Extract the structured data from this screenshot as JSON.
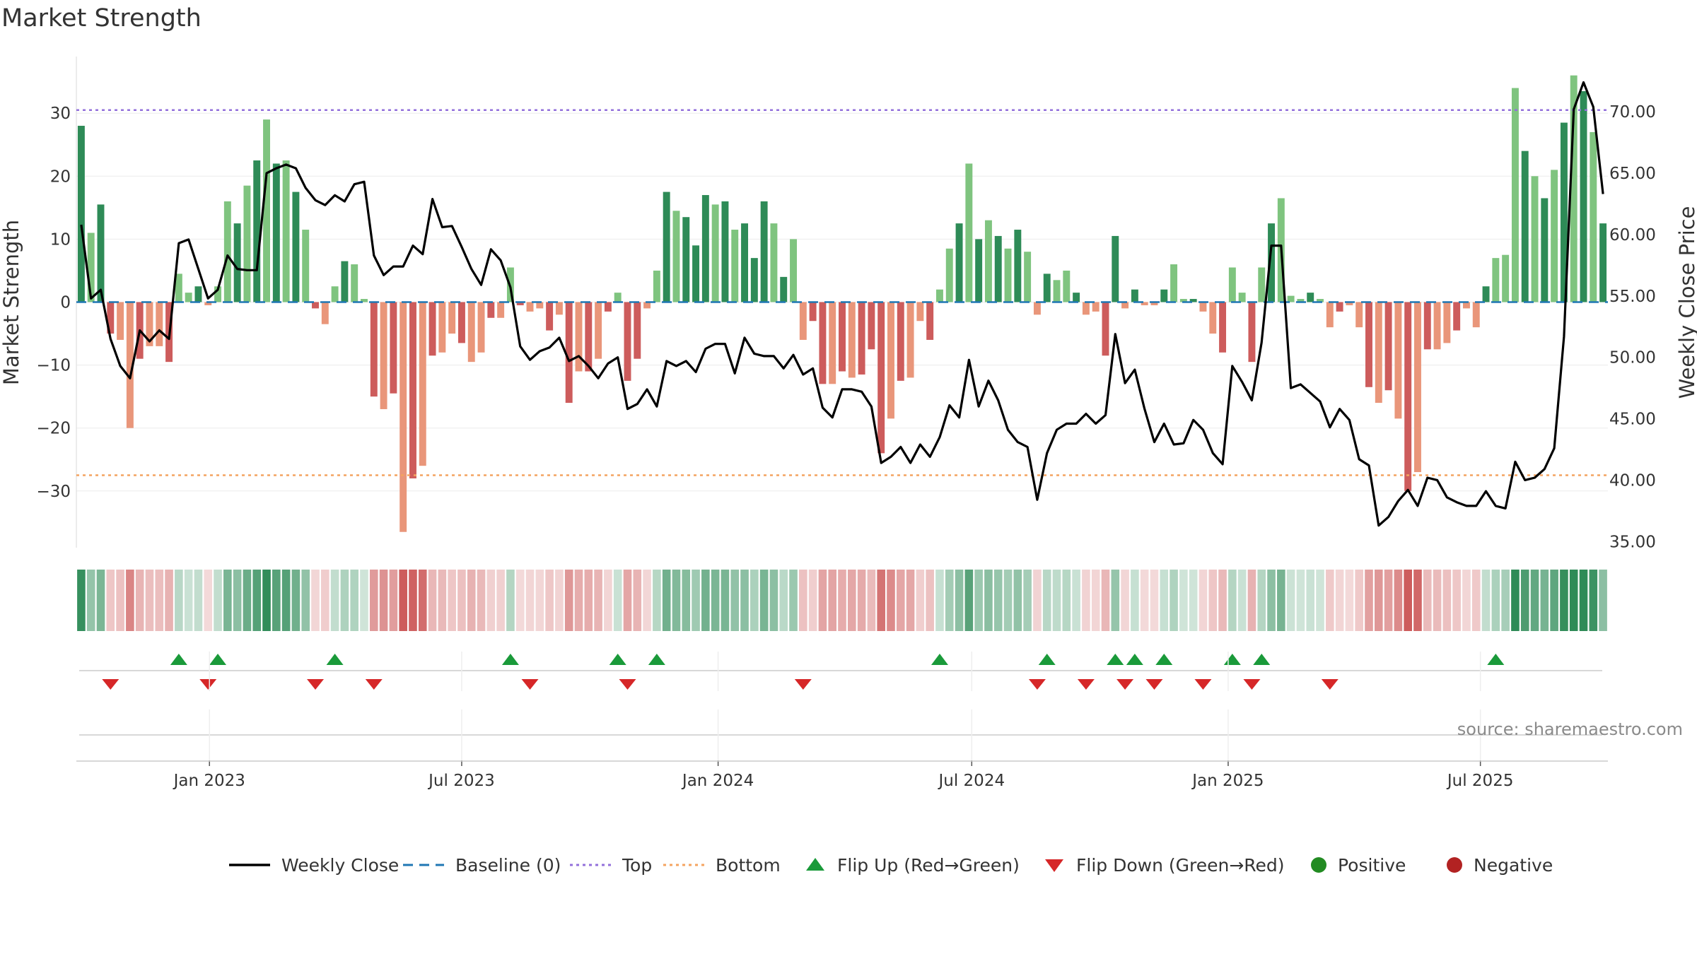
{
  "title": "Market Strength",
  "source": "source: sharemaestro.com",
  "colors": {
    "strong_green": "#2e8b57",
    "light_green": "#7fc47f",
    "strong_red": "#cd5c5c",
    "light_red": "#e9967a",
    "line": "#000000",
    "top": "#9370db",
    "bottom": "#f4a460",
    "baseline": "#1f77b4",
    "flip_up": "#1a9a3a",
    "flip_down": "#d62728",
    "positive": "#228b22",
    "negative": "#b22222"
  },
  "chart_data": {
    "type": "bar",
    "x_start": "2022-10-01",
    "x_step_days": 7,
    "left_axis": {
      "label": "Market Strength",
      "ticks": [
        30,
        20,
        10,
        0,
        -10,
        -20,
        -30
      ],
      "tick_labels": [
        "30",
        "20",
        "10",
        "0",
        "−10",
        "−20",
        "−30"
      ],
      "ylim": [
        -39,
        39
      ]
    },
    "right_axis": {
      "label": "Weekly Close Price",
      "ticks": [
        70,
        65,
        60,
        55,
        50,
        45,
        40,
        35
      ],
      "tick_labels": [
        "70.00",
        "65.00",
        "60.00",
        "55.00",
        "50.00",
        "45.00",
        "40.00",
        "35.00"
      ],
      "ylim": [
        34.5,
        74.5
      ]
    },
    "x_ticks": [
      {
        "label": "Jan 2023",
        "date": "2023-01-01"
      },
      {
        "label": "Jul 2023",
        "date": "2023-07-01"
      },
      {
        "label": "Jan 2024",
        "date": "2024-01-01"
      },
      {
        "label": "Jul 2024",
        "date": "2024-07-01"
      },
      {
        "label": "Jan 2025",
        "date": "2025-01-01"
      },
      {
        "label": "Jul 2025",
        "date": "2025-07-01"
      }
    ],
    "top_level": 30.5,
    "bottom_level": -27.5,
    "strength": [
      28,
      11,
      15.5,
      -5,
      -6,
      -20,
      -9,
      -7,
      -7,
      -9.5,
      4.5,
      1.5,
      2.5,
      -0.5,
      2.5,
      16,
      12.5,
      18.5,
      22.5,
      29,
      22,
      22.5,
      17.5,
      11.5,
      -1,
      -3.5,
      2.5,
      6.5,
      6,
      0.5,
      -15,
      -17,
      -14.5,
      -36.5,
      -28,
      -26,
      -8.5,
      -8,
      -5,
      -6.5,
      -9.5,
      -8,
      -2.5,
      -2.5,
      5.5,
      -0.5,
      -1.5,
      -1,
      -4.5,
      -2,
      -16,
      -11,
      -11,
      -9,
      -1.5,
      1.5,
      -12.5,
      -9,
      -1,
      5,
      17.5,
      14.5,
      13.5,
      9,
      17,
      15.5,
      16,
      11.5,
      12.5,
      7,
      16,
      12.5,
      4,
      10,
      -6,
      -3,
      -13,
      -13,
      -11,
      -12,
      -11.5,
      -7.5,
      -24,
      -18.5,
      -12.5,
      -12,
      -3,
      -6,
      2,
      8.5,
      12.5,
      22,
      10,
      13,
      10.5,
      8.5,
      11.5,
      8,
      -2,
      4.5,
      3.5,
      5,
      1.5,
      -2,
      -1.5,
      -8.5,
      10.5,
      -1,
      2,
      -0.5,
      -0.5,
      2,
      6,
      0.5,
      0.5,
      -1.5,
      -5,
      -8,
      5.5,
      1.5,
      -9.5,
      5.5,
      12.5,
      16.5,
      1,
      0.5,
      1.5,
      0.5,
      -4,
      -1.5,
      -0.5,
      -4,
      -13.5,
      -16,
      -14,
      -18.5,
      -30,
      -27,
      -7.5,
      -7.5,
      -6.5,
      -4.5,
      -1,
      -4,
      2.5,
      7,
      7.5,
      34,
      24,
      20,
      16.5,
      21,
      28.5,
      36,
      33.5,
      27,
      12.5
    ],
    "weekly_close": [
      60.8,
      54.8,
      55.5,
      51.5,
      49.3,
      48.3,
      52.2,
      51.3,
      52.2,
      51.5,
      59.3,
      59.6,
      57.2,
      54.8,
      55.5,
      58.3,
      57.2,
      57.1,
      57.1,
      65,
      65.4,
      65.7,
      65.4,
      63.8,
      62.8,
      62.4,
      63.2,
      62.7,
      64.1,
      64.3,
      58.3,
      56.7,
      57.4,
      57.4,
      59.1,
      58.4,
      62.9,
      60.6,
      60.7,
      59,
      57.2,
      55.9,
      58.8,
      57.9,
      55.7,
      50.9,
      49.8,
      50.5,
      50.8,
      51.6,
      49.7,
      50.1,
      49.3,
      48.3,
      49.5,
      50,
      45.8,
      46.2,
      47.4,
      46,
      49.7,
      49.3,
      49.7,
      48.8,
      50.7,
      51.1,
      51.1,
      48.7,
      51.6,
      50.3,
      50.1,
      50.1,
      49.1,
      50.2,
      48.6,
      49.1,
      45.9,
      45.1,
      47.4,
      47.4,
      47.2,
      46,
      41.4,
      41.9,
      42.7,
      41.4,
      42.9,
      41.9,
      43.5,
      46.1,
      45.1,
      49.8,
      46,
      48.1,
      46.5,
      44.1,
      43.1,
      42.7,
      38.4,
      42.2,
      44.1,
      44.6,
      44.6,
      45.4,
      44.6,
      45.3,
      51.9,
      47.9,
      49,
      45.8,
      43.1,
      44.6,
      42.9,
      43,
      44.9,
      44.1,
      42.2,
      41.3,
      49.3,
      48,
      46.5,
      51.2,
      59.1,
      59.1,
      47.5,
      47.8,
      47.1,
      46.4,
      44.3,
      45.8,
      44.9,
      41.7,
      41.2,
      36.3,
      37,
      38.3,
      39.2,
      37.9,
      40.2,
      40,
      38.6,
      38.2,
      37.9,
      37.9,
      39.1,
      37.9,
      37.7,
      41.5,
      40,
      40.2,
      40.9,
      42.6,
      51.7,
      70.2,
      72.4,
      70.4,
      63.3
    ],
    "flip_up_indices": [
      10,
      14,
      26,
      44,
      55,
      59,
      88,
      99,
      106,
      108,
      111,
      118,
      121,
      145
    ],
    "flip_down_indices": [
      3,
      13,
      24,
      30,
      46,
      56,
      74,
      98,
      103,
      107,
      110,
      115,
      120,
      128
    ],
    "flip_up_positions": [
      0.03,
      0.07,
      0.13,
      0.37,
      0.52,
      0.56,
      0.88,
      1.0,
      1.08,
      1.1,
      1.13,
      1.22,
      1.25,
      1.56
    ]
  },
  "legend": [
    {
      "label": "Weekly Close",
      "kind": "line"
    },
    {
      "label": "Baseline (0)",
      "kind": "dash"
    },
    {
      "label": "Top",
      "kind": "dot-top"
    },
    {
      "label": "Bottom",
      "kind": "dot-bottom"
    },
    {
      "label": "Flip Up (Red→Green)",
      "kind": "tri-up"
    },
    {
      "label": "Flip Down (Green→Red)",
      "kind": "tri-down"
    },
    {
      "label": "Positive",
      "kind": "circle-pos"
    },
    {
      "label": "Negative",
      "kind": "circle-neg"
    }
  ]
}
